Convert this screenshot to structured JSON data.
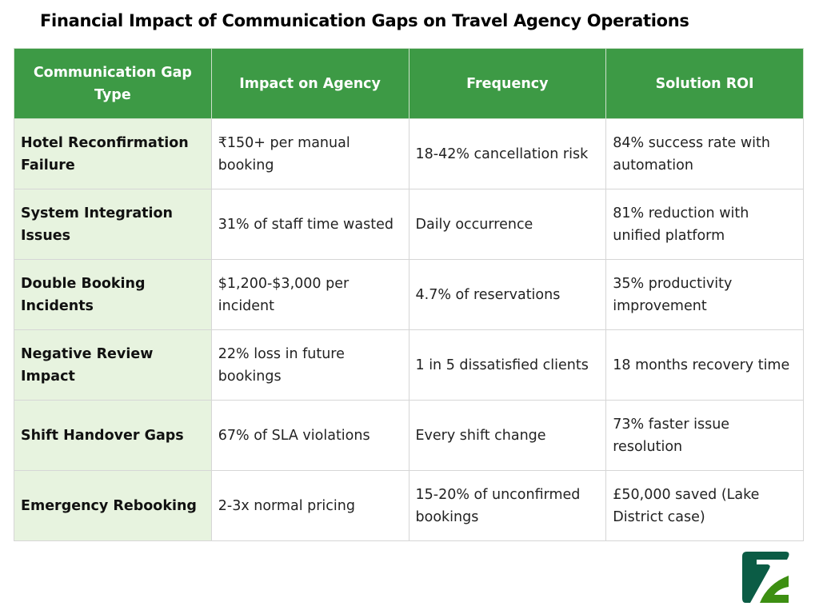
{
  "title": "Financial Impact of Communication Gaps on Travel Agency Operations",
  "colors": {
    "header_bg": "#3d9a45",
    "first_col_bg": "#e7f3df",
    "logo_dark": "#0b5c45",
    "logo_light": "#3d8f12"
  },
  "table": {
    "headers": [
      "Communication Gap Type",
      "Impact on Agency",
      "Frequency",
      "Solution ROI"
    ],
    "rows": [
      [
        "Hotel Reconfirmation Failure",
        "₹150+ per manual booking",
        "18-42% cancellation risk",
        "84% success rate with automation"
      ],
      [
        "System Integration Issues",
        "31% of staff time wasted",
        "Daily occurrence",
        "81% reduction with unified platform"
      ],
      [
        "Double Booking Incidents",
        "$1,200-$3,000 per incident",
        "4.7% of reservations",
        "35% productivity improvement"
      ],
      [
        "Negative Review Impact",
        "22% loss in future bookings",
        "1 in 5 dissatisfied clients",
        "18 months recovery time"
      ],
      [
        "Shift Handover Gaps",
        "67% of SLA violations",
        "Every shift change",
        "73% faster issue resolution"
      ],
      [
        "Emergency Rebooking",
        "2-3x normal pricing",
        "15-20% of unconfirmed bookings",
        "£50,000 saved (Lake District case)"
      ]
    ]
  },
  "logo": {
    "icon": "brand-logo-icon"
  }
}
